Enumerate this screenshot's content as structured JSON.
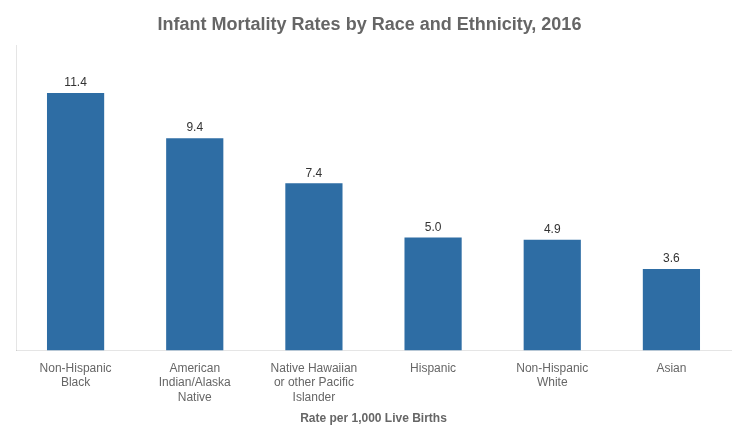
{
  "chart_data": {
    "type": "bar",
    "title": "Infant Mortality Rates by Race and Ethnicity, 2016",
    "xlabel": "Rate per 1,000 Live Births",
    "categories": [
      "Non-Hispanic\nBlack",
      "American\nIndian/Alaska\nNative",
      "Native Hawaiian\nor other Pacific\nIslander",
      "Hispanic",
      "Non-Hispanic\nWhite",
      "Asian"
    ],
    "values": [
      11.4,
      9.4,
      7.4,
      5.0,
      4.9,
      3.6
    ],
    "value_labels": [
      "11.4",
      "9.4",
      "7.4",
      "5.0",
      "4.9",
      "3.6"
    ],
    "color": "#2E6DA4",
    "ylim": [
      0,
      13.5
    ],
    "grid": false,
    "data_labels": true,
    "tick_labels": "x"
  }
}
